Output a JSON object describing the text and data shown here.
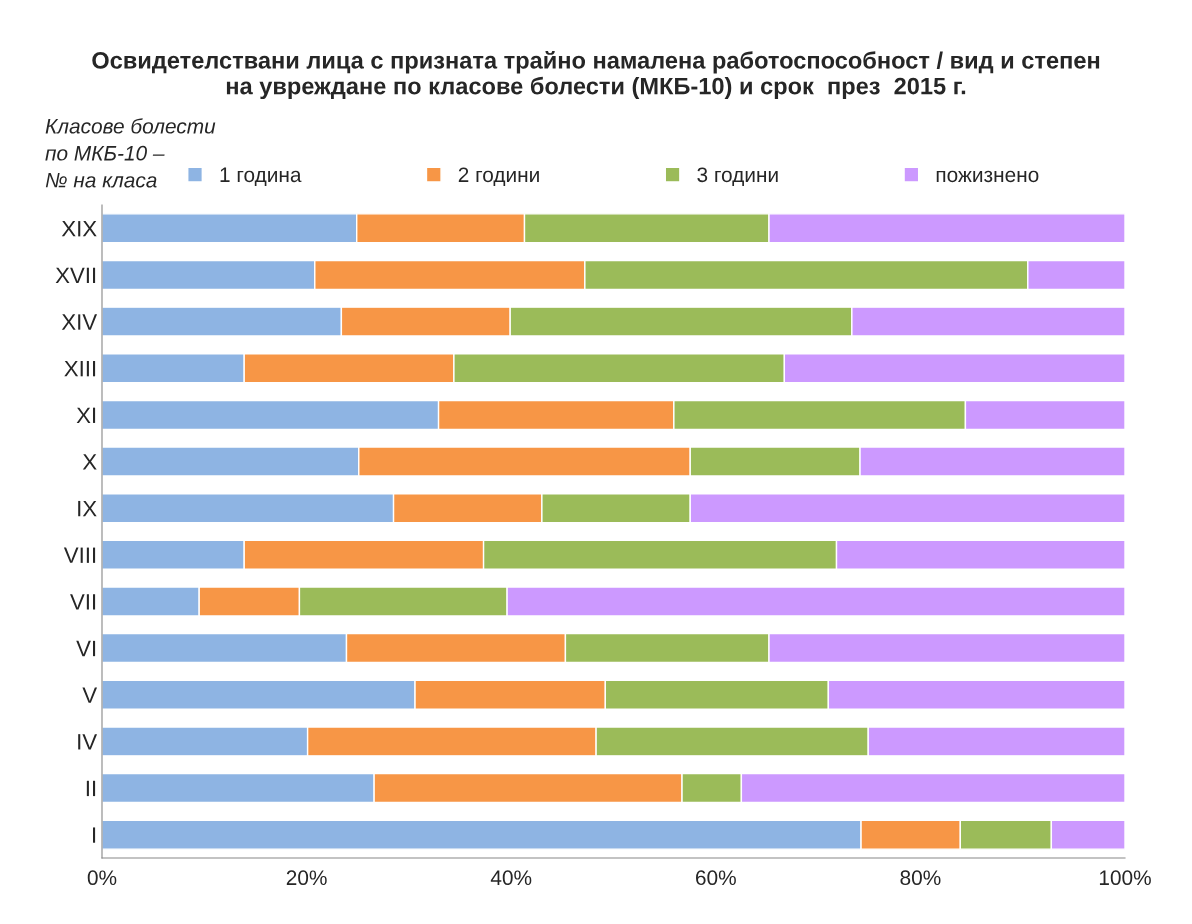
{
  "chart_data": {
    "type": "bar",
    "orientation": "horizontal",
    "stacked": true,
    "title": "Освидетелствани лица с призната трайно намалена работоспособност / вид и степен\nна увреждане по класове болести (МКБ-10) и срок  през  2015 г.",
    "ylabel": "Класове болести\nпо МКБ-10 –\n№ на класа",
    "categories": [
      "XIX",
      "XVII",
      "XIV",
      "XIII",
      "XI",
      "X",
      "IX",
      "VIII",
      "VII",
      "VI",
      "V",
      "IV",
      "II",
      "I"
    ],
    "series": [
      {
        "name": "1 година",
        "color": "#8eb4e3",
        "values": [
          24.9,
          20.8,
          23.4,
          13.9,
          32.9,
          25.1,
          28.5,
          13.9,
          9.5,
          23.9,
          30.6,
          20.1,
          26.6,
          74.2
        ]
      },
      {
        "name": "2 години",
        "color": "#f79646",
        "values": [
          16.4,
          26.4,
          16.5,
          20.5,
          23.0,
          32.4,
          14.5,
          23.4,
          9.8,
          21.4,
          18.6,
          28.2,
          30.1,
          9.7
        ]
      },
      {
        "name": "3 години",
        "color": "#9bbb59",
        "values": [
          23.9,
          43.3,
          33.4,
          32.3,
          28.5,
          16.6,
          14.5,
          34.5,
          20.3,
          19.9,
          21.8,
          26.6,
          5.8,
          8.9
        ]
      },
      {
        "name": "пожизнено",
        "color": "#cc99ff",
        "values": [
          34.8,
          9.5,
          26.7,
          33.3,
          15.6,
          25.9,
          42.5,
          28.2,
          60.4,
          34.8,
          29.0,
          25.1,
          37.5,
          7.2
        ]
      }
    ],
    "xlim": [
      0,
      100
    ],
    "xticks": [
      {
        "value": 0,
        "label": "0%"
      },
      {
        "value": 20,
        "label": "20%"
      },
      {
        "value": 40,
        "label": "40%"
      },
      {
        "value": 60,
        "label": "60%"
      },
      {
        "value": 80,
        "label": "80%"
      },
      {
        "value": 100,
        "label": "100%"
      }
    ],
    "legend": "top",
    "grid": false
  }
}
